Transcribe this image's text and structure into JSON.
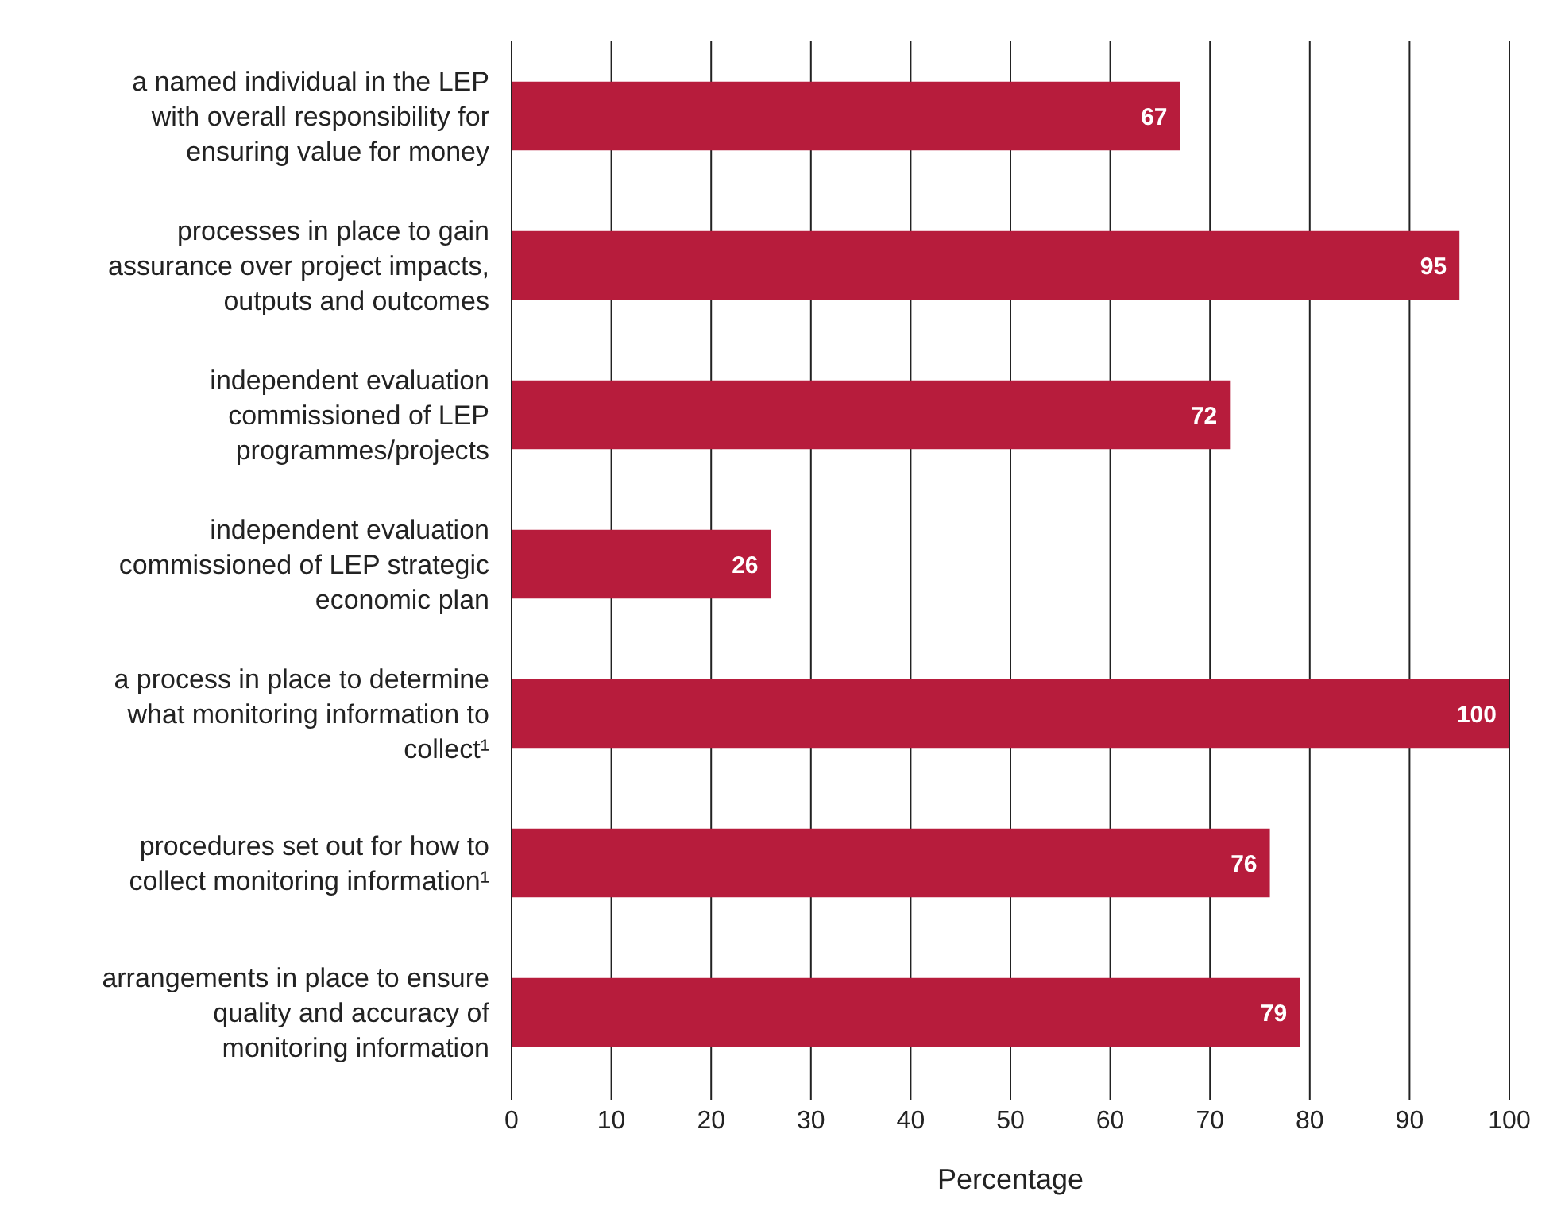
{
  "chart_data": {
    "type": "bar",
    "orientation": "horizontal",
    "xlabel": "Percentage",
    "categories": [
      "a named individual in the LEP with overall responsibility for ensuring value for money",
      "processes in place to gain assurance over project impacts, outputs and outcomes",
      "independent evaluation commissioned of LEP programmes/projects",
      "independent evaluation commissioned of LEP strategic economic plan",
      "a process in place to determine what monitoring information to collect¹",
      "procedures set out for how to collect monitoring information¹",
      "arrangements in place to ensure quality and accuracy of monitoring information"
    ],
    "values": [
      67,
      95,
      72,
      26,
      100,
      76,
      79
    ],
    "color": "#b71c3c",
    "data_labels": true,
    "grid": "x",
    "xlim": [
      0,
      100
    ],
    "xticks": [
      0,
      10,
      20,
      30,
      40,
      50,
      60,
      70,
      80,
      90,
      100
    ]
  }
}
